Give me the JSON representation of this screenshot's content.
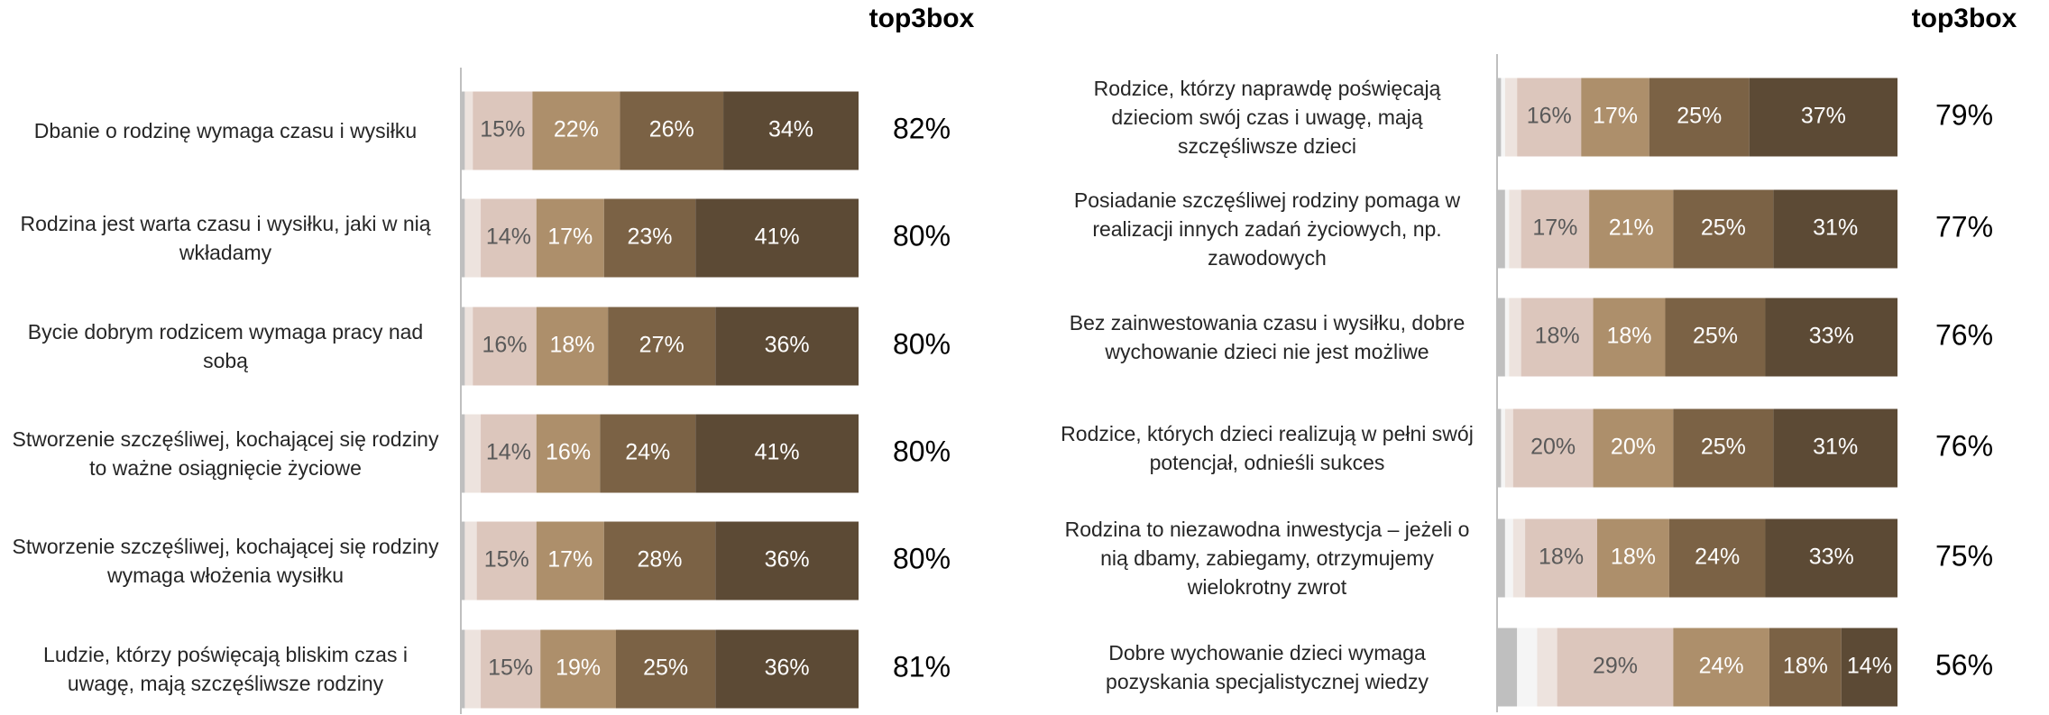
{
  "chart_data": [
    {
      "type": "bar",
      "orientation": "horizontal",
      "stacked": true,
      "xlim": [
        0,
        100
      ],
      "categories": [
        "Dbanie o rodzinę wymaga czasu i wysiłku",
        "Rodzina jest warta czasu i wysiłku, jaki w nią wkładamy",
        "Bycie dobrym rodzicem wymaga pracy nad sobą",
        "Stworzenie szczęśliwej, kochającej się rodziny to ważne osiągnięcie życiowe",
        "Stworzenie szczęśliwej, kochającej się rodziny wymaga włożenia wysiłku",
        "Ludzie, którzy poświęcają bliskim czas i uwagę, mają szczęśliwsze rodziny"
      ],
      "series": [
        {
          "color": "#bfbfbf",
          "values": [
            1,
            1,
            1,
            1,
            1,
            1
          ]
        },
        {
          "color": "#ede3de",
          "values": [
            2,
            4,
            2,
            4,
            3,
            4
          ]
        },
        {
          "color": "#dcc6bc",
          "label_color": "#595959",
          "values": [
            15,
            14,
            16,
            14,
            15,
            15
          ],
          "value_labels": [
            "15%",
            "14%",
            "16%",
            "14%",
            "15%",
            "15%"
          ]
        },
        {
          "color": "#ad8f6b",
          "label_color": "#ffffff",
          "values": [
            22,
            17,
            18,
            16,
            17,
            19
          ],
          "value_labels": [
            "22%",
            "17%",
            "18%",
            "16%",
            "17%",
            "19%"
          ]
        },
        {
          "color": "#7b6245",
          "label_color": "#ffffff",
          "values": [
            26,
            23,
            27,
            24,
            28,
            25
          ],
          "value_labels": [
            "26%",
            "23%",
            "27%",
            "24%",
            "28%",
            "25%"
          ]
        },
        {
          "color": "#5c4a35",
          "label_color": "#ffffff",
          "values": [
            34,
            41,
            36,
            41,
            36,
            36
          ],
          "value_labels": [
            "34%",
            "41%",
            "36%",
            "41%",
            "36%",
            "36%"
          ]
        }
      ],
      "top3box": {
        "name": "top3box",
        "values": [
          82,
          80,
          80,
          80,
          80,
          81
        ],
        "value_labels": [
          "82%",
          "80%",
          "80%",
          "80%",
          "80%",
          "81%"
        ]
      }
    },
    {
      "type": "bar",
      "orientation": "horizontal",
      "stacked": true,
      "xlim": [
        0,
        100
      ],
      "categories": [
        "Rodzice, którzy naprawdę poświęcają dzieciom swój czas i uwagę, mają szczęśliwsze dzieci",
        "Posiadanie szczęśliwej rodziny pomaga w realizacji innych zadań życiowych, np. zawodowych",
        "Bez zainwestowania czasu i wysiłku, dobre wychowanie dzieci nie jest możliwe",
        "Rodzice, których dzieci realizują w pełni swój potencjał, odnieśli sukces",
        "Rodzina to niezawodna inwestycja – jeżeli o nią dbamy, zabiegamy, otrzymujemy wielokrotny zwrot",
        "Dobre wychowanie dzieci wymaga pozyskania specjalistycznej wiedzy"
      ],
      "series": [
        {
          "color": "#bfbfbf",
          "values": [
            1,
            2,
            2,
            1,
            2,
            5
          ]
        },
        {
          "color": "#f5f5f5",
          "values": [
            1,
            1,
            1,
            1,
            2,
            5
          ]
        },
        {
          "color": "#ede3de",
          "values": [
            3,
            3,
            3,
            2,
            3,
            5
          ]
        },
        {
          "color": "#dcc6bc",
          "label_color": "#595959",
          "values": [
            16,
            17,
            18,
            20,
            18,
            29
          ],
          "value_labels": [
            "16%",
            "17%",
            "18%",
            "20%",
            "18%",
            "29%"
          ]
        },
        {
          "color": "#ad8f6b",
          "label_color": "#ffffff",
          "values": [
            17,
            21,
            18,
            20,
            18,
            24
          ],
          "value_labels": [
            "17%",
            "21%",
            "18%",
            "20%",
            "18%",
            "24%"
          ]
        },
        {
          "color": "#7b6245",
          "label_color": "#ffffff",
          "values": [
            25,
            25,
            25,
            25,
            24,
            18
          ],
          "value_labels": [
            "25%",
            "25%",
            "25%",
            "25%",
            "24%",
            "18%"
          ]
        },
        {
          "color": "#5c4a35",
          "label_color": "#ffffff",
          "values": [
            37,
            31,
            33,
            31,
            33,
            14
          ],
          "value_labels": [
            "37%",
            "31%",
            "33%",
            "31%",
            "33%",
            "14%"
          ]
        }
      ],
      "top3box": {
        "name": "top3box",
        "values": [
          79,
          77,
          76,
          76,
          75,
          56
        ],
        "value_labels": [
          "79%",
          "77%",
          "76%",
          "76%",
          "75%",
          "56%"
        ]
      }
    }
  ]
}
